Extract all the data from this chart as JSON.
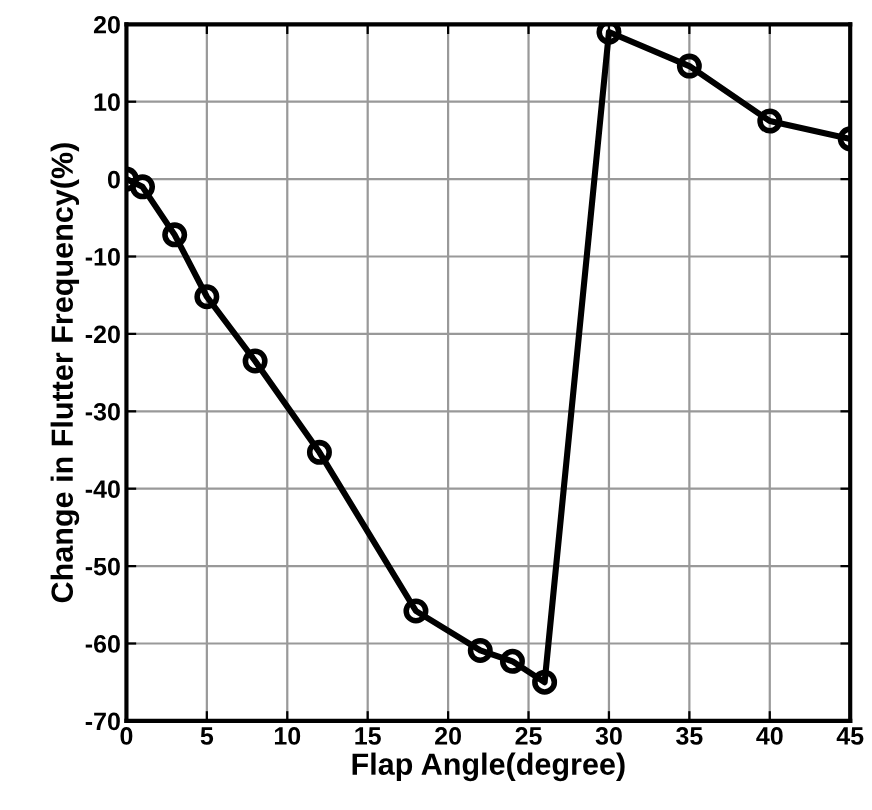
{
  "chart_data": {
    "type": "line",
    "xlabel": "Flap Angle(degree)",
    "ylabel": "Change in Flutter Frequency(%)",
    "x": [
      0,
      1,
      3,
      5,
      8,
      12,
      18,
      22,
      24,
      26,
      30,
      35,
      40,
      45
    ],
    "series": [
      {
        "color": "#000000",
        "values": [
          0,
          -1,
          -7.2,
          -15.2,
          -23.5,
          -35.3,
          -55.8,
          -60.9,
          -62.3,
          -65,
          19,
          14.6,
          7.5,
          5.2
        ]
      }
    ],
    "xlim": [
      0,
      45
    ],
    "ylim": [
      -70,
      20
    ],
    "xticks": [
      0,
      5,
      10,
      15,
      20,
      25,
      30,
      35,
      40,
      45
    ],
    "yticks": [
      -70,
      -60,
      -50,
      -40,
      -30,
      -20,
      -10,
      0,
      10,
      20
    ],
    "grid": true,
    "marker": "circle",
    "line_style": "solid"
  }
}
